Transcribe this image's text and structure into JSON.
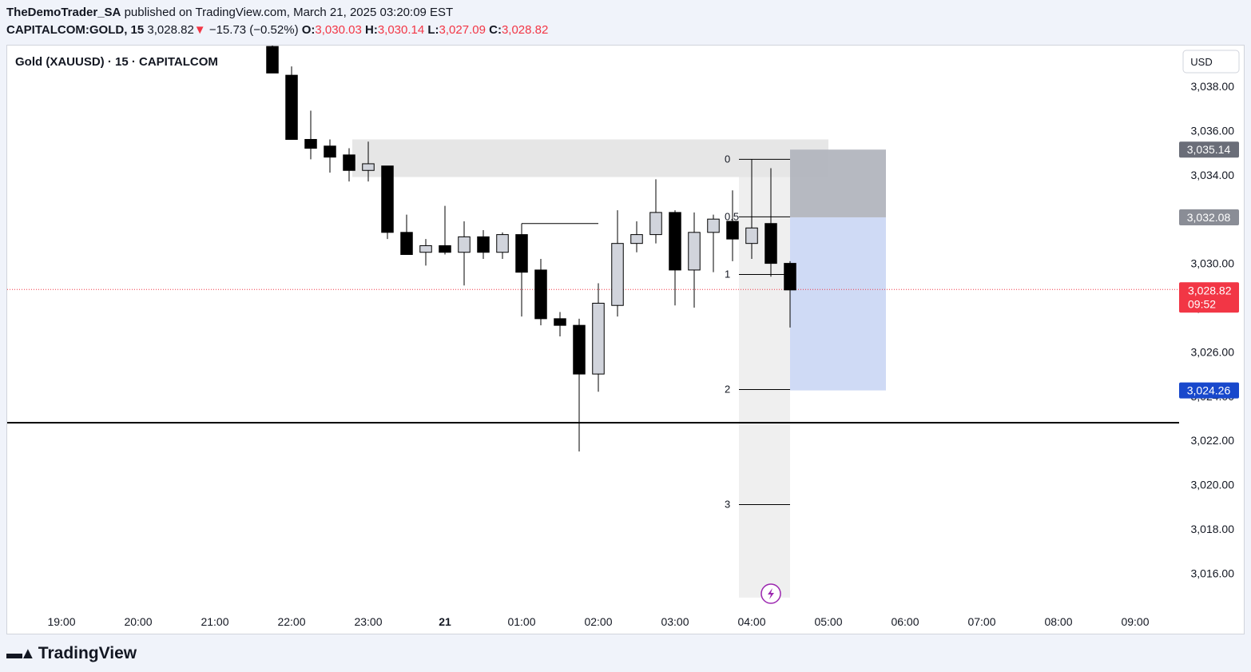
{
  "header": {
    "author": "TheDemoTrader_SA",
    "published_text": "published on TradingView.com, March 21, 2025 03:20:09 EST",
    "symbol": "CAPITALCOM:GOLD, 15",
    "last": "3,028.82",
    "change_arrow": "▼",
    "change": "−15.73 (−0.52%)",
    "o_label": "O:",
    "o": "3,030.03",
    "h_label": "H:",
    "h": "3,030.14",
    "l_label": "L:",
    "l": "3,027.09",
    "c_label": "C:",
    "c": "3,028.82"
  },
  "legend": {
    "title": "Gold (XAUUSD) · 15 · CAPITALCOM"
  },
  "currency": "USD",
  "footer": {
    "brand": "TradingView",
    "logo_icon": "tradingview-logo-icon"
  },
  "colors": {
    "bear": "#000000",
    "bull": "#d1d4dc",
    "last_price": "#f23645",
    "target": "#1848cc",
    "grey_label": "#6a6d78",
    "zone": "#e6e6e6",
    "fib_box": "#efefef",
    "stop_box": "#b2b5be",
    "target_box": "#cfdaf5"
  },
  "chart_data": {
    "type": "candlestick",
    "interval_minutes": 15,
    "ylim": [
      3014.5,
      3040.8
    ],
    "y_ticks": [
      3016,
      3018,
      3020,
      3022,
      3024,
      3026,
      3028,
      3030,
      3032,
      3034,
      3036,
      3038
    ],
    "y_tick_labels": [
      "3,016.00",
      "3,018.00",
      "3,020.00",
      "3,022.00",
      "3,024.00",
      "3,026.00",
      "3,028.00",
      "3,030.00",
      "3,032.00",
      "3,034.00",
      "3,036.00",
      "3,038.00"
    ],
    "x_ticks": [
      "19:00",
      "20:00",
      "21:00",
      "22:00",
      "23:00",
      "21",
      "01:00",
      "02:00",
      "03:00",
      "04:00",
      "05:00",
      "06:00",
      "07:00",
      "08:00",
      "09:00"
    ],
    "candles": [
      {
        "t": "21:45",
        "o": 3039.8,
        "h": 3041.5,
        "l": 3038.6,
        "c": 3038.6
      },
      {
        "t": "22:00",
        "o": 3038.5,
        "h": 3038.9,
        "l": 3035.6,
        "c": 3035.6
      },
      {
        "t": "22:15",
        "o": 3035.6,
        "h": 3036.9,
        "l": 3034.7,
        "c": 3035.2
      },
      {
        "t": "22:30",
        "o": 3035.3,
        "h": 3035.6,
        "l": 3034.1,
        "c": 3034.8
      },
      {
        "t": "22:45",
        "o": 3034.9,
        "h": 3035.2,
        "l": 3033.7,
        "c": 3034.2
      },
      {
        "t": "23:00",
        "o": 3034.2,
        "h": 3035.5,
        "l": 3033.7,
        "c": 3034.5
      },
      {
        "t": "23:15",
        "o": 3034.4,
        "h": 3034.4,
        "l": 3031.1,
        "c": 3031.4
      },
      {
        "t": "23:30",
        "o": 3031.4,
        "h": 3032.2,
        "l": 3030.4,
        "c": 3030.4
      },
      {
        "t": "23:45",
        "o": 3030.5,
        "h": 3031.1,
        "l": 3029.9,
        "c": 3030.8
      },
      {
        "t": "00:00",
        "o": 3030.8,
        "h": 3032.6,
        "l": 3030.4,
        "c": 3030.5
      },
      {
        "t": "00:15",
        "o": 3030.5,
        "h": 3031.9,
        "l": 3029.0,
        "c": 3031.2
      },
      {
        "t": "00:30",
        "o": 3031.2,
        "h": 3031.5,
        "l": 3030.2,
        "c": 3030.5
      },
      {
        "t": "00:45",
        "o": 3030.5,
        "h": 3031.4,
        "l": 3030.2,
        "c": 3031.3
      },
      {
        "t": "01:00",
        "o": 3031.3,
        "h": 3031.8,
        "l": 3027.6,
        "c": 3029.6
      },
      {
        "t": "01:15",
        "o": 3029.7,
        "h": 3030.2,
        "l": 3027.2,
        "c": 3027.5
      },
      {
        "t": "01:30",
        "o": 3027.5,
        "h": 3027.8,
        "l": 3026.7,
        "c": 3027.2
      },
      {
        "t": "01:45",
        "o": 3027.2,
        "h": 3027.5,
        "l": 3021.5,
        "c": 3025.0
      },
      {
        "t": "02:00",
        "o": 3025.0,
        "h": 3029.1,
        "l": 3024.2,
        "c": 3028.2
      },
      {
        "t": "02:15",
        "o": 3028.1,
        "h": 3032.4,
        "l": 3027.6,
        "c": 3030.9
      },
      {
        "t": "02:30",
        "o": 3030.9,
        "h": 3031.9,
        "l": 3030.5,
        "c": 3031.3
      },
      {
        "t": "02:45",
        "o": 3031.3,
        "h": 3033.8,
        "l": 3030.9,
        "c": 3032.3
      },
      {
        "t": "03:00",
        "o": 3032.3,
        "h": 3032.4,
        "l": 3028.1,
        "c": 3029.7
      },
      {
        "t": "03:15",
        "o": 3029.7,
        "h": 3032.3,
        "l": 3028.0,
        "c": 3031.4
      },
      {
        "t": "03:30",
        "o": 3031.4,
        "h": 3032.2,
        "l": 3029.6,
        "c": 3032.0
      },
      {
        "t": "03:45",
        "o": 3031.9,
        "h": 3033.3,
        "l": 3030.1,
        "c": 3031.1
      },
      {
        "t": "04:00",
        "o": 3030.9,
        "h": 3032.0,
        "l": 3030.2,
        "c": 3031.6
      },
      {
        "t": "04:15",
        "o": 3031.8,
        "h": 3034.3,
        "l": 3029.4,
        "c": 3030.0
      },
      {
        "t": "04:30",
        "o": 3030.0,
        "h": 3030.1,
        "l": 3027.1,
        "c": 3028.8
      }
    ],
    "last_price": {
      "value": 3028.82,
      "label": "3,028.82",
      "countdown": "09:52"
    },
    "price_labels": [
      {
        "label": "3,035.14",
        "value": 3035.14,
        "color": "#6a6d78"
      },
      {
        "label": "3,032.08",
        "value": 3032.08,
        "color": "#8a8d96"
      },
      {
        "label": "3,024.26",
        "value": 3024.26,
        "color": "#1848cc"
      }
    ],
    "supply_zone": {
      "t_start": "23:00",
      "t_end": "05:00",
      "top": 3035.6,
      "bottom": 3033.9
    },
    "horizontal_line": {
      "value": 3022.8
    },
    "ray": {
      "t_start": "01:00",
      "t_end": "02:00",
      "value": 3031.8
    },
    "fib": {
      "t_start": "03:50",
      "t_end": "04:30",
      "level_values": [
        3034.7,
        3032.1,
        3029.5,
        3024.3,
        3019.1
      ],
      "labels": [
        "0",
        "0.5",
        "1",
        "2",
        "3"
      ],
      "anchor_top": 3034.7,
      "box_bottom": 3014.9
    },
    "position": {
      "t_start": "04:30",
      "t_end": "05:45",
      "entry": 3032.08,
      "stop": 3035.14,
      "target": 3024.26
    },
    "lightning_icon": "lightning-icon"
  }
}
